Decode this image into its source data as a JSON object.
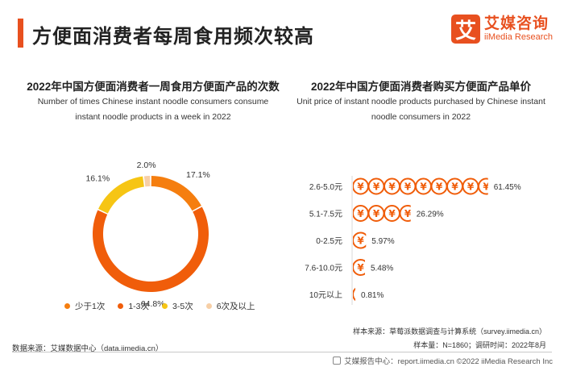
{
  "page": {
    "title": "方便面消费者每周食用频次较高"
  },
  "brand": {
    "cn": "艾媒咨询",
    "en": "iiMedia Research",
    "mark": "艾"
  },
  "left_chart": {
    "title_cn": "2022年中国方便面消费者一周食用方便面产品的次数",
    "title_en": "Number of times Chinese instant noodle consumers consume instant noodle products in a week in 2022"
  },
  "right_chart": {
    "title_cn": "2022年中国方便面消费者购买方便面产品单价",
    "title_en": "Unit price of instant noodle products purchased by Chinese instant noodle consumers in 2022"
  },
  "chart_data": [
    {
      "type": "pie",
      "categories": [
        "少于1次",
        "1-3次",
        "3-5次",
        "6次及以上"
      ],
      "values": [
        17.1,
        64.8,
        16.1,
        2.0
      ],
      "labels": [
        "17.1%",
        "64.8%",
        "16.1%",
        "2.0%"
      ],
      "colors": [
        "#f57e0f",
        "#f05d0a",
        "#f6c514",
        "#f7cfa6"
      ],
      "legend": "bottom"
    },
    {
      "type": "bar",
      "orientation": "horizontal",
      "mark": "yuan-coin",
      "categories": [
        "2.6-5.0元",
        "5.1-7.5元",
        "0-2.5元",
        "7.6-10.0元",
        "10元以上"
      ],
      "values": [
        61.45,
        26.29,
        5.97,
        5.48,
        0.81
      ],
      "labels": [
        "61.45%",
        "26.29%",
        "5.97%",
        "5.48%",
        "0.81%"
      ],
      "color": "#f05d0a"
    }
  ],
  "footer": {
    "source_left": "数据来源：艾媒数据中心（data.iimedia.cn）",
    "sample_source": "样本来源：草莓派数据调查与计算系统（survey.iimedia.cn）",
    "sample_size": "样本量：N=1860；调研时间：2022年8月",
    "report_center": "艾媒报告中心：report.iimedia.cn  ©2022  iiMedia Research  Inc"
  }
}
